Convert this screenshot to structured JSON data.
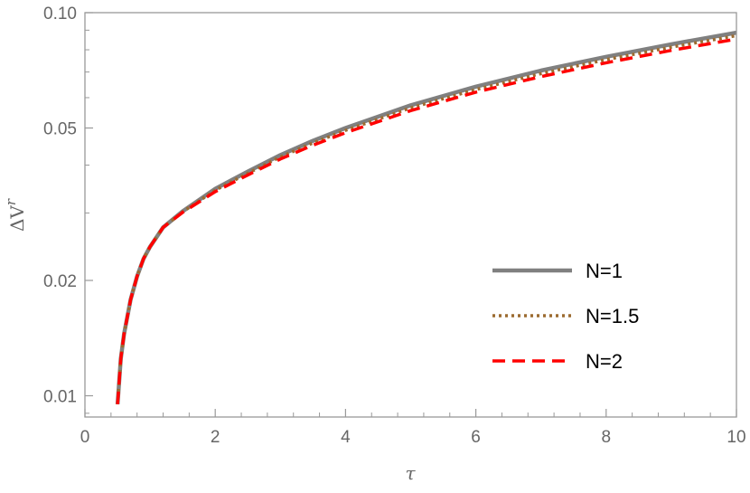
{
  "chart_data": {
    "type": "line",
    "title": "",
    "xlabel": "τ",
    "ylabel_base": "ΔV",
    "ylabel_sup": "r",
    "x_scale": "linear",
    "y_scale": "log",
    "xlim": [
      0,
      10
    ],
    "ylim": [
      0.0088,
      0.1
    ],
    "x_ticks": [
      0,
      2,
      4,
      6,
      8,
      10
    ],
    "x_tick_labels": [
      "0",
      "2",
      "4",
      "6",
      "8",
      "10"
    ],
    "y_ticks": [
      0.01,
      0.02,
      0.05,
      0.1
    ],
    "y_tick_labels": [
      "0.01",
      "0.02",
      "0.05",
      "0.10"
    ],
    "grid": false,
    "legend_position": "bottom-right",
    "series": [
      {
        "name": "N=1",
        "color": "#808080",
        "style": "solid",
        "points": [
          [
            0.5,
            0.0095
          ],
          [
            0.55,
            0.0125
          ],
          [
            0.6,
            0.0145
          ],
          [
            0.7,
            0.0178
          ],
          [
            0.8,
            0.0205
          ],
          [
            0.9,
            0.0228
          ],
          [
            1.0,
            0.0245
          ],
          [
            1.2,
            0.0275
          ],
          [
            1.5,
            0.0303
          ],
          [
            2.0,
            0.0347
          ],
          [
            2.5,
            0.0385
          ],
          [
            3.0,
            0.0425
          ],
          [
            3.5,
            0.0463
          ],
          [
            4.0,
            0.05
          ],
          [
            5.0,
            0.0573
          ],
          [
            6.0,
            0.0641
          ],
          [
            7.0,
            0.0706
          ],
          [
            8.0,
            0.0767
          ],
          [
            9.0,
            0.0827
          ],
          [
            10.0,
            0.0887
          ]
        ]
      },
      {
        "name": "N=1.5",
        "color": "#9c6b30",
        "style": "dotted",
        "points": [
          [
            0.5,
            0.0095
          ],
          [
            0.55,
            0.0125
          ],
          [
            0.6,
            0.0145
          ],
          [
            0.7,
            0.0178
          ],
          [
            0.8,
            0.0205
          ],
          [
            0.9,
            0.0228
          ],
          [
            1.0,
            0.0245
          ],
          [
            1.2,
            0.0275
          ],
          [
            1.5,
            0.0302
          ],
          [
            2.0,
            0.0344
          ],
          [
            2.5,
            0.0381
          ],
          [
            3.0,
            0.042
          ],
          [
            3.5,
            0.0457
          ],
          [
            4.0,
            0.0493
          ],
          [
            5.0,
            0.0564
          ],
          [
            6.0,
            0.063
          ],
          [
            7.0,
            0.0693
          ],
          [
            8.0,
            0.0754
          ],
          [
            9.0,
            0.0813
          ],
          [
            10.0,
            0.0871
          ]
        ]
      },
      {
        "name": "N=2",
        "color": "#ff0000",
        "style": "dashed",
        "points": [
          [
            0.5,
            0.0095
          ],
          [
            0.55,
            0.0125
          ],
          [
            0.6,
            0.0145
          ],
          [
            0.7,
            0.0178
          ],
          [
            0.8,
            0.0205
          ],
          [
            0.9,
            0.0228
          ],
          [
            1.0,
            0.0245
          ],
          [
            1.2,
            0.0275
          ],
          [
            1.5,
            0.0301
          ],
          [
            2.0,
            0.0341
          ],
          [
            2.5,
            0.0377
          ],
          [
            3.0,
            0.0415
          ],
          [
            3.5,
            0.0451
          ],
          [
            4.0,
            0.0486
          ],
          [
            5.0,
            0.0555
          ],
          [
            6.0,
            0.062
          ],
          [
            7.0,
            0.0681
          ],
          [
            8.0,
            0.074
          ],
          [
            9.0,
            0.0797
          ],
          [
            10.0,
            0.0853
          ]
        ]
      }
    ]
  }
}
